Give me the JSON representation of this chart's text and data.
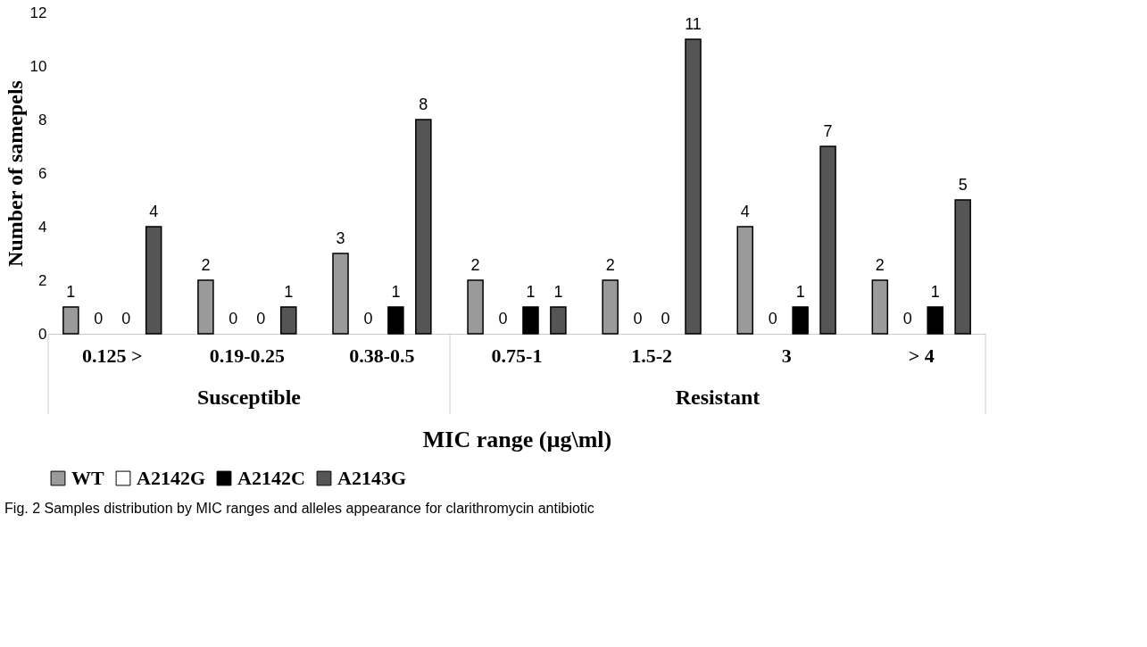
{
  "chart_data": {
    "type": "bar",
    "xlabel": "MIC range (µg\\ml)",
    "ylabel": "Number of samepels",
    "categories": [
      "0.125 >",
      "0.19-0.25",
      "0.38-0.5",
      "0.75-1",
      "1.5-2",
      "3",
      "> 4"
    ],
    "series": [
      {
        "name": "WT",
        "color": "#9a9a9a",
        "values": [
          1,
          2,
          3,
          2,
          2,
          4,
          2
        ]
      },
      {
        "name": "A2142G",
        "color": "#ffffff",
        "values": [
          0,
          0,
          0,
          0,
          0,
          0,
          0
        ]
      },
      {
        "name": "A2142C",
        "color": "#000000",
        "values": [
          0,
          0,
          1,
          1,
          0,
          1,
          1
        ]
      },
      {
        "name": "A2143G",
        "color": "#555555",
        "values": [
          4,
          1,
          8,
          1,
          11,
          7,
          5
        ]
      }
    ],
    "ylim": [
      0,
      12
    ],
    "yticks": [
      0,
      2,
      4,
      6,
      8,
      10,
      12
    ],
    "data_labels": true,
    "legend": "bottom",
    "grid": false,
    "annotations": [
      "Susceptible",
      "Resistant",
      "Fig. 2  Samples distribution by MIC ranges and alleles appearance for clarithromycin antibiotic"
    ]
  }
}
